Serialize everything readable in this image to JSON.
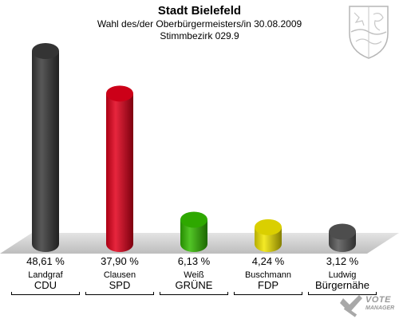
{
  "header": {
    "title": "Stadt Bielefeld",
    "subtitle": "Wahl des/der Oberbürgermeisters/in 30.08.2009",
    "district": "Stimmbezirk 029.9"
  },
  "logo": {
    "line1": "VOTE",
    "line2": "MANAGER"
  },
  "chart_data": {
    "type": "bar",
    "ylim": [
      0,
      50
    ],
    "unit": "%",
    "bars": [
      {
        "candidate": "Landgraf",
        "party": "CDU",
        "value": 48.61,
        "label": "48,61 %",
        "color": "#3a3a3a"
      },
      {
        "candidate": "Clausen",
        "party": "SPD",
        "value": 37.9,
        "label": "37,90 %",
        "color": "#e3001b"
      },
      {
        "candidate": "Weiß",
        "party": "GRÜNE",
        "value": 6.13,
        "label": "6,13 %",
        "color": "#33bb00"
      },
      {
        "candidate": "Buschmann",
        "party": "FDP",
        "value": 4.24,
        "label": "4,24 %",
        "color": "#f2e600"
      },
      {
        "candidate": "Ludwig",
        "party": "Bürgernähe",
        "value": 3.12,
        "label": "3,12 %",
        "color": "#555555"
      }
    ]
  }
}
